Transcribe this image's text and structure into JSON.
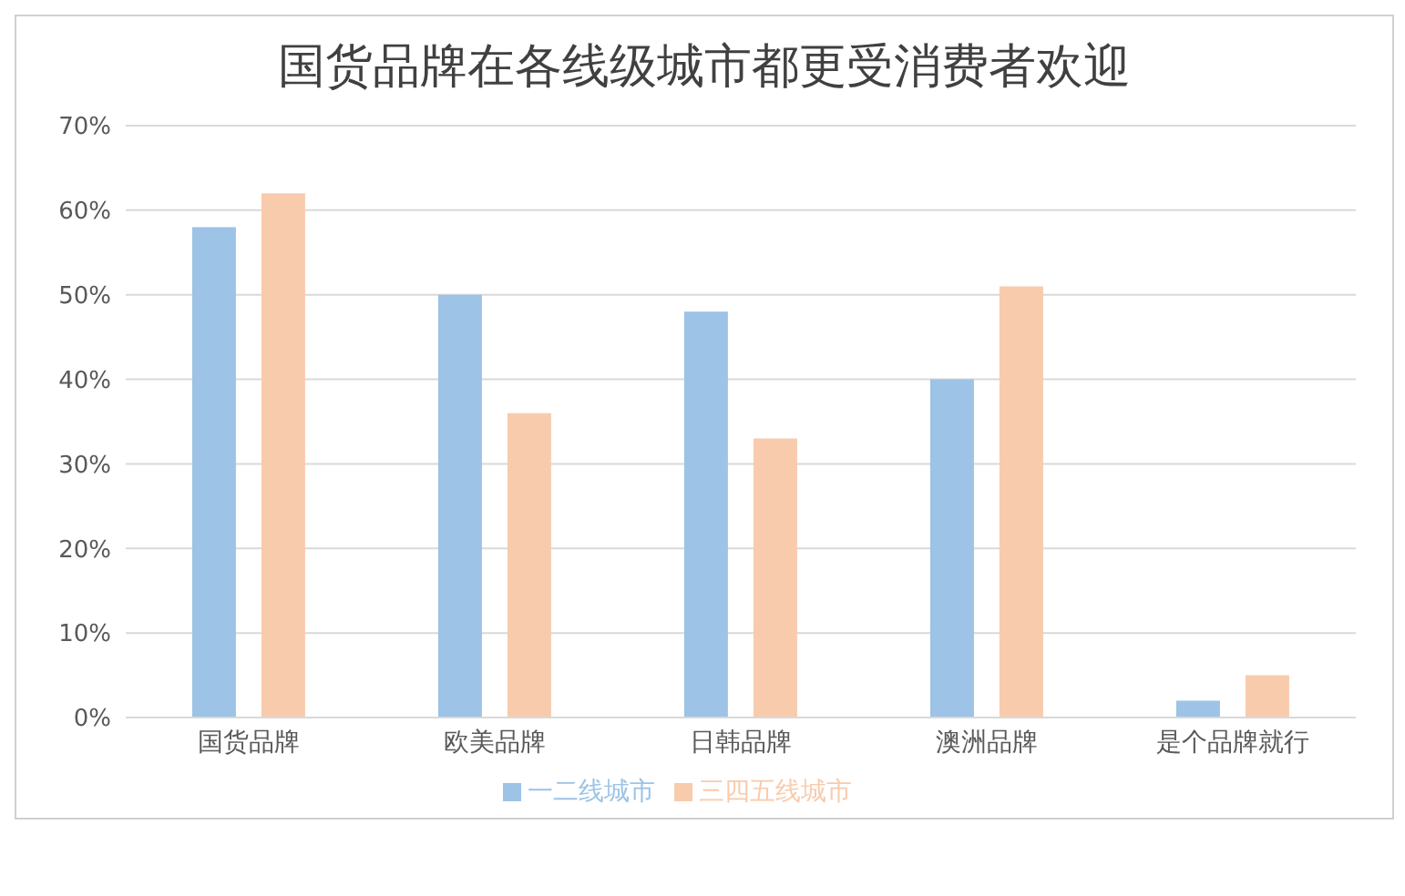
{
  "chart_data": {
    "type": "bar",
    "title": "国货品牌在各线级城市都更受消费者欢迎",
    "categories": [
      "国货品牌",
      "欧美品牌",
      "日韩品牌",
      "澳洲品牌",
      "是个品牌就行"
    ],
    "series": [
      {
        "name": "一二线城市",
        "color": "#9dc3e6",
        "values": [
          58,
          50,
          48,
          40,
          2
        ]
      },
      {
        "name": "三四五线城市",
        "color": "#f8cbad",
        "values": [
          62,
          36,
          33,
          51,
          5
        ]
      }
    ],
    "ylim": [
      0,
      70
    ],
    "yticks": [
      {
        "value": 0,
        "label": "0%"
      },
      {
        "value": 10,
        "label": "10%"
      },
      {
        "value": 20,
        "label": "20%"
      },
      {
        "value": 30,
        "label": "30%"
      },
      {
        "value": 40,
        "label": "40%"
      },
      {
        "value": 50,
        "label": "50%"
      },
      {
        "value": 60,
        "label": "60%"
      },
      {
        "value": 70,
        "label": "70%"
      }
    ],
    "grid": "y",
    "legend": "bottom"
  }
}
